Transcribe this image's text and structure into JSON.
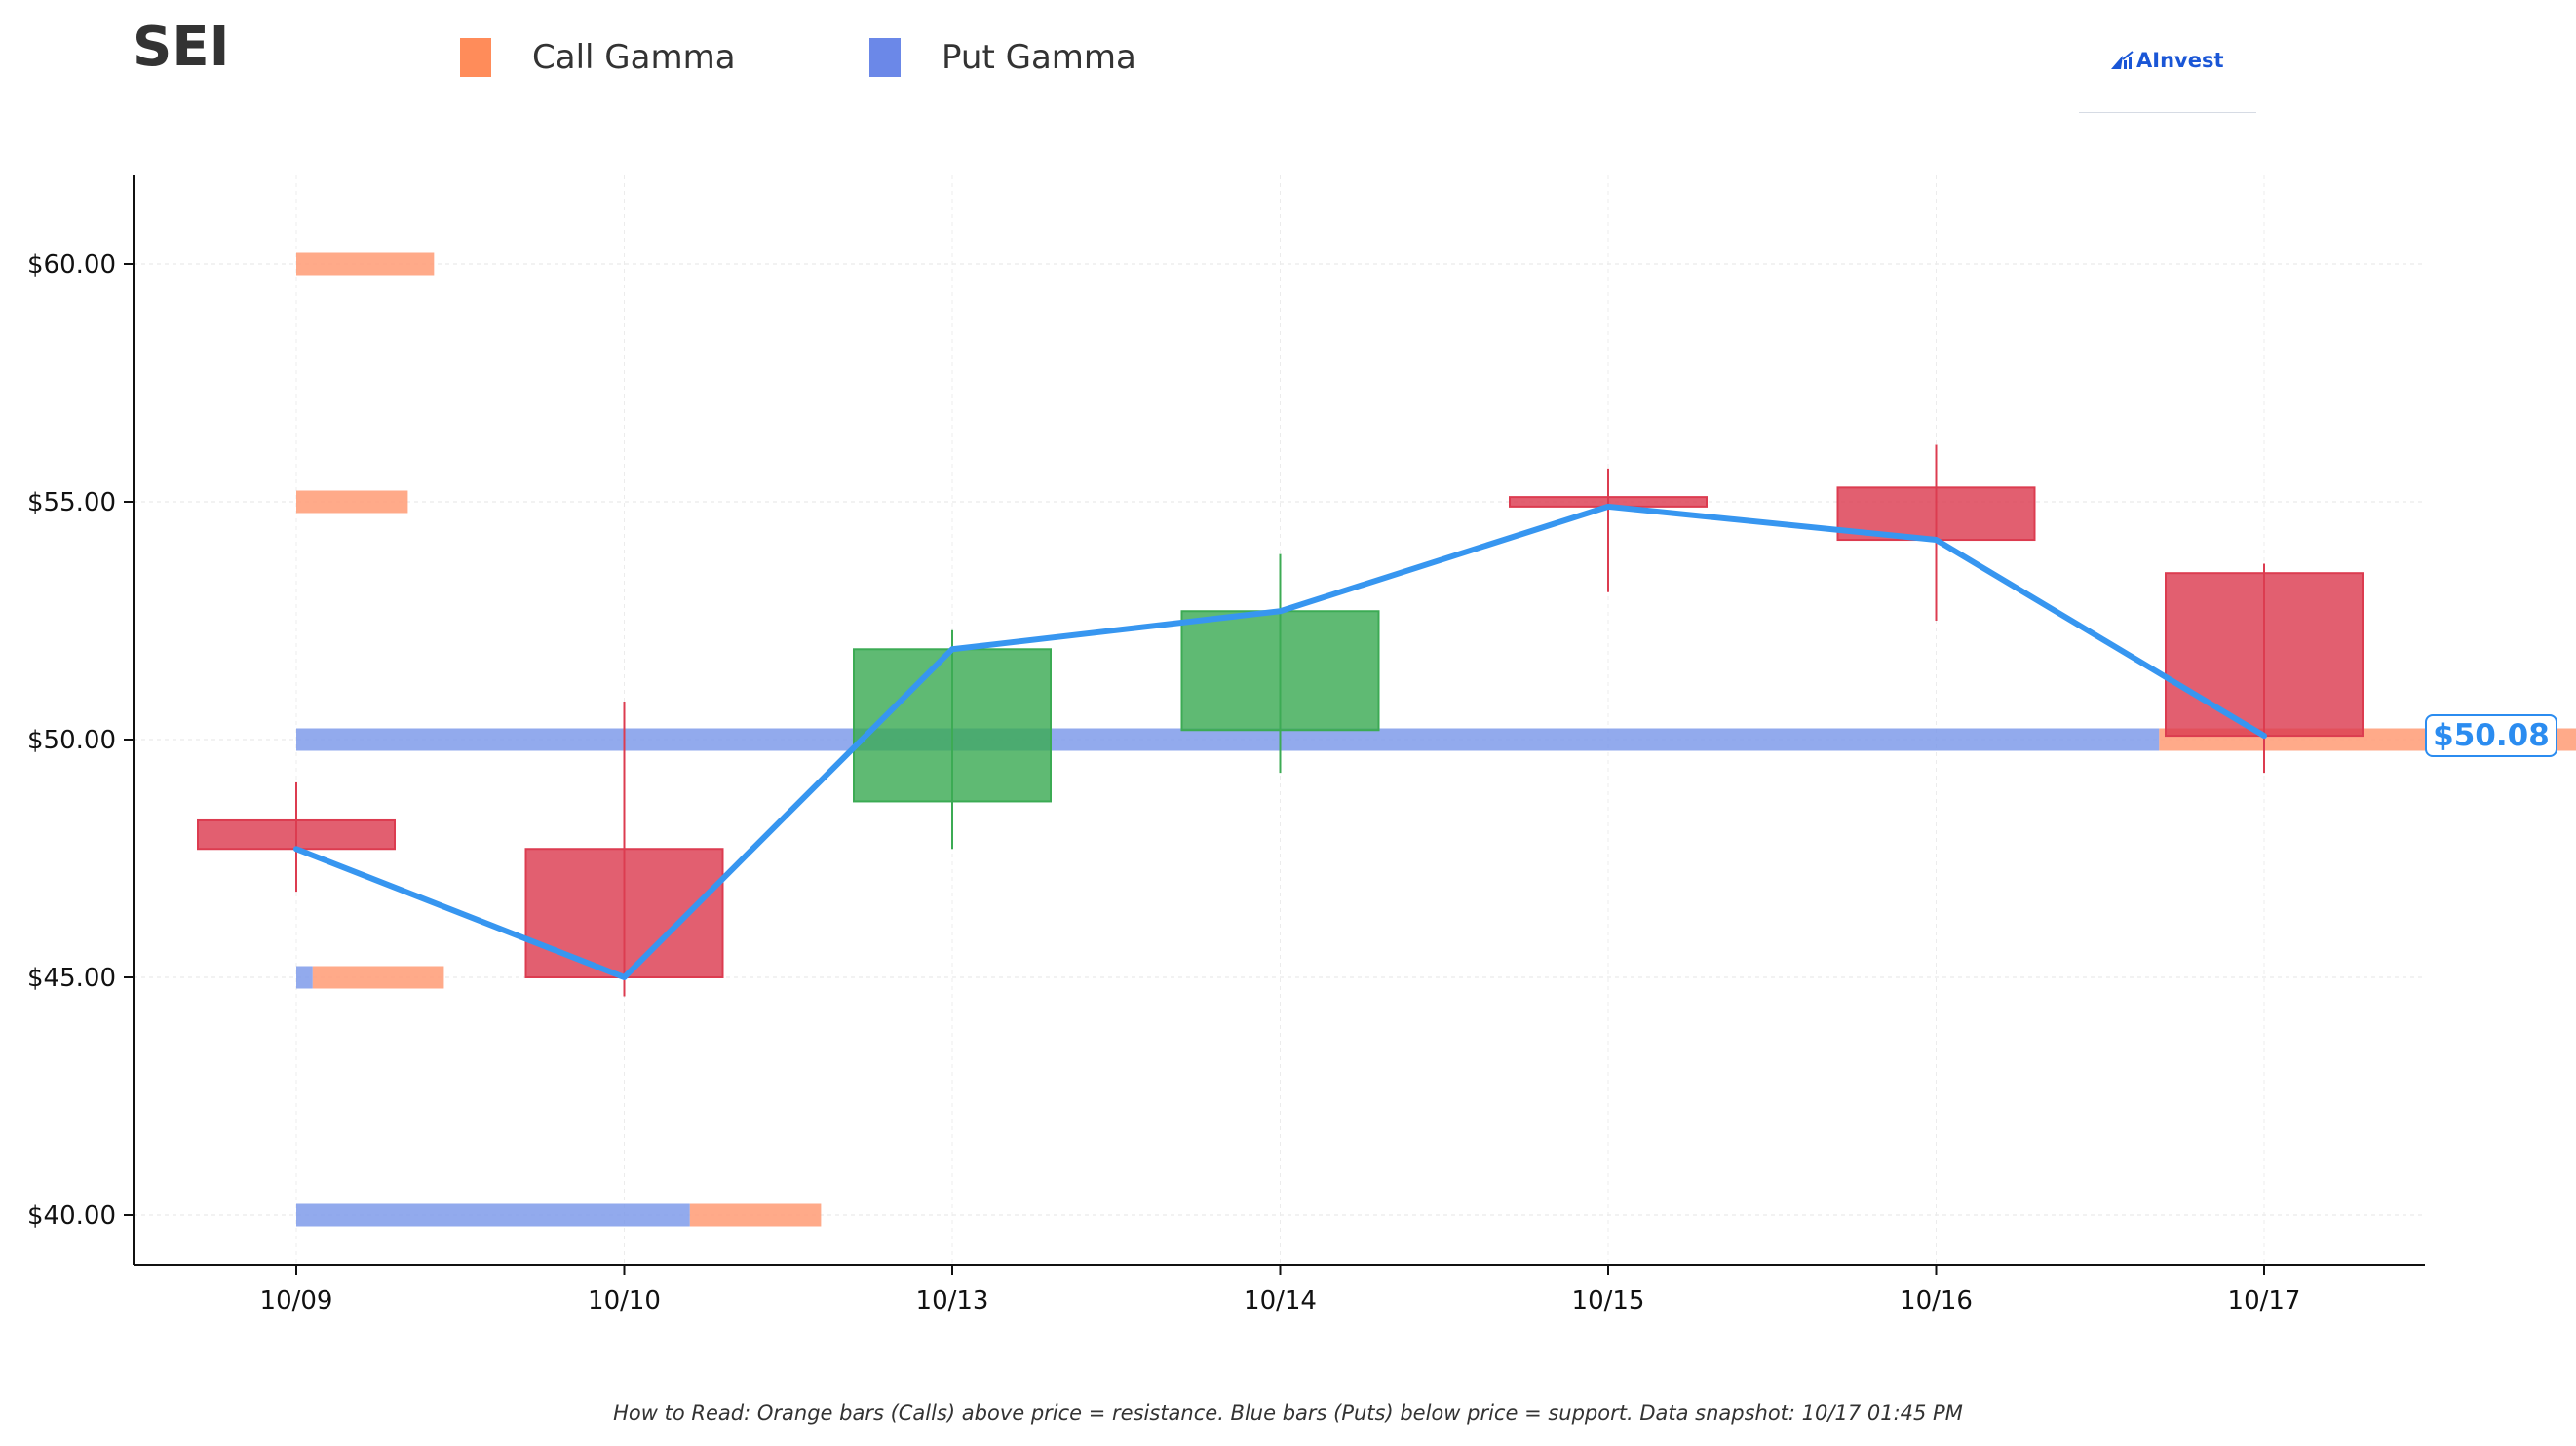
{
  "header": {
    "ticker": "SEI",
    "logo_text": "AInvest"
  },
  "legend": [
    {
      "label": "Call Gamma",
      "color": "#ff8c5a"
    },
    {
      "label": "Put Gamma",
      "color": "#6b88e8"
    }
  ],
  "footnote": "How to Read: Orange bars (Calls) above price = resistance. Blue bars (Puts) below price = support. Data snapshot: 10/17 01:45 PM",
  "price_badge": "$50.08",
  "colors": {
    "up": "#3cab54",
    "down": "#dc3c50",
    "price_line": "#3796f0",
    "call": "#ff9b74",
    "put": "#7f9bea"
  },
  "chart_data": {
    "type": "candlestick",
    "categories": [
      "10/09",
      "10/10",
      "10/13",
      "10/14",
      "10/15",
      "10/16",
      "10/17"
    ],
    "ohlc": [
      {
        "date": "10/09",
        "open": 48.3,
        "high": 49.1,
        "low": 46.8,
        "close": 47.7
      },
      {
        "date": "10/10",
        "open": 47.7,
        "high": 50.8,
        "low": 44.6,
        "close": 45.0
      },
      {
        "date": "10/13",
        "open": 48.7,
        "high": 52.3,
        "low": 47.7,
        "close": 51.9
      },
      {
        "date": "10/14",
        "open": 50.2,
        "high": 53.9,
        "low": 49.3,
        "close": 52.7
      },
      {
        "date": "10/15",
        "open": 55.1,
        "high": 55.7,
        "low": 53.1,
        "close": 54.9
      },
      {
        "date": "10/16",
        "open": 55.3,
        "high": 56.2,
        "low": 52.5,
        "close": 54.2
      },
      {
        "date": "10/17",
        "open": 53.5,
        "high": 53.7,
        "low": 49.3,
        "close": 50.08
      }
    ],
    "price_line": {
      "x": [
        "10/09",
        "10/10",
        "10/13",
        "10/14",
        "10/15",
        "10/16",
        "10/17"
      ],
      "y": [
        47.7,
        45.0,
        51.9,
        52.7,
        54.9,
        54.2,
        50.08
      ]
    },
    "gamma_levels": [
      {
        "strike": 60,
        "call": 0.42,
        "put": 0
      },
      {
        "strike": 55,
        "call": 0.34,
        "put": 0
      },
      {
        "strike": 50,
        "call": 1.31,
        "put": 5.68
      },
      {
        "strike": 45,
        "call": 0.4,
        "put": 0.05
      },
      {
        "strike": 40,
        "call": 0.4,
        "put": 1.2
      }
    ],
    "gamma_units": "category widths from the 10/09 axis position",
    "y_ticks": [
      40,
      45,
      50,
      55,
      60
    ],
    "y_tick_labels": [
      "$40.00",
      "$45.00",
      "$50.00",
      "$55.00",
      "$60.00"
    ],
    "ylim": [
      39,
      62
    ],
    "grid": true,
    "legend_position": "top-left"
  }
}
